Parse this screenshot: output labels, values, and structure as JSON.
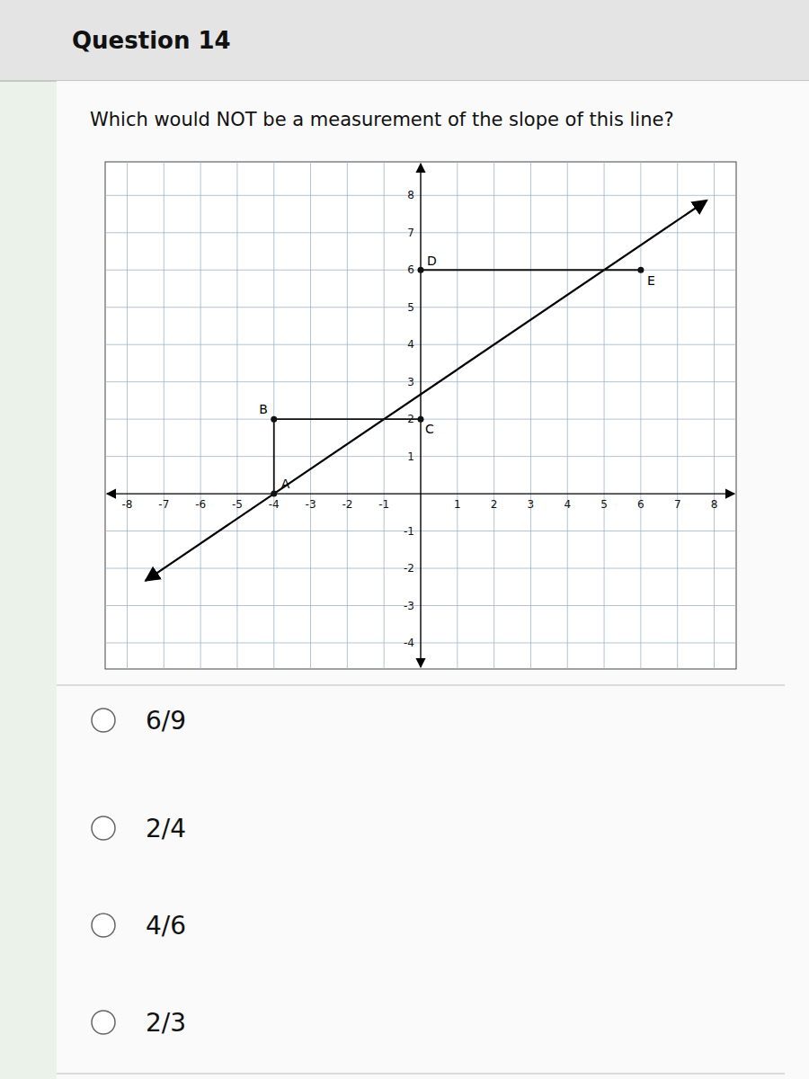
{
  "chart_data": {
    "type": "line",
    "title": "Question 14",
    "subtitle": "Which would NOT be a measurement of the slope of this line?",
    "choices": [
      "6/9",
      "2/4",
      "4/6",
      "2/3"
    ],
    "xlim": [
      -8.6,
      8.6
    ],
    "ylim": [
      -4.7,
      8.9
    ],
    "xticks": [
      -8,
      -7,
      -6,
      -5,
      -4,
      -3,
      -2,
      -1,
      1,
      2,
      3,
      4,
      5,
      6,
      7,
      8
    ],
    "yticks": [
      -4,
      -3,
      -2,
      -1,
      1,
      2,
      3,
      4,
      5,
      6,
      7,
      8
    ],
    "grid": true,
    "series": [
      {
        "type": "line",
        "x": [
          -7.5,
          7.8
        ],
        "values": [
          -2.33355,
          7.86696
        ],
        "color": "#000000"
      },
      {
        "type": "line",
        "x": [
          -4,
          -4,
          0
        ],
        "values": [
          0,
          2,
          2
        ],
        "color": "#111111",
        "marker": "circle"
      },
      {
        "type": "line",
        "x": [
          0,
          6
        ],
        "values": [
          6,
          6
        ],
        "color": "#111111",
        "marker": "circle"
      }
    ],
    "annotations": [
      {
        "text": "A",
        "x": -4,
        "y": 0
      },
      {
        "text": "B",
        "x": -4,
        "y": 2
      },
      {
        "text": "C",
        "x": 0,
        "y": 2
      },
      {
        "text": "D",
        "x": 0,
        "y": 6
      },
      {
        "text": "E",
        "x": 6,
        "y": 6
      }
    ]
  }
}
